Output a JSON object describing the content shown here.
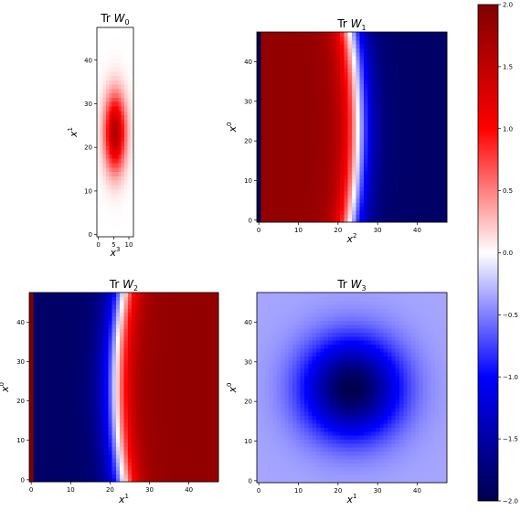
{
  "chart_data": [
    {
      "type": "heatmap",
      "title": "Tr W_0",
      "title_base": "Tr ",
      "title_var": "W",
      "title_sub": "0",
      "xlabel_var": "x",
      "xlabel_sup": "3",
      "ylabel_var": "x",
      "ylabel_sup": "1",
      "xlim": [
        0,
        12
      ],
      "ylim": [
        0,
        48
      ],
      "xticks": [
        0,
        5,
        10
      ],
      "yticks": [
        0,
        10,
        20,
        30,
        40
      ],
      "grid": false,
      "pattern": "gaussian bump, peak ~1.6 at (x3=6, x1=24)"
    },
    {
      "type": "heatmap",
      "title": "Tr W_1",
      "title_base": "Tr ",
      "title_var": "W",
      "title_sub": "1",
      "xlabel_var": "x",
      "xlabel_sup": "2",
      "ylabel_var": "x",
      "ylabel_sup": "0",
      "xlim": [
        0,
        48
      ],
      "ylim": [
        0,
        48
      ],
      "xticks": [
        0,
        10,
        20,
        30,
        40
      ],
      "yticks": [
        0,
        10,
        20,
        30,
        40
      ],
      "grid": false,
      "pattern": "positive (red) for x2 < 24, negative (blue) for x2 > 24"
    },
    {
      "type": "heatmap",
      "title": "Tr W_2",
      "title_base": "Tr ",
      "title_var": "W",
      "title_sub": "2",
      "xlabel_var": "x",
      "xlabel_sup": "1",
      "ylabel_var": "x",
      "ylabel_sup": "0",
      "xlim": [
        0,
        48
      ],
      "ylim": [
        0,
        48
      ],
      "xticks": [
        0,
        10,
        20,
        30,
        40
      ],
      "yticks": [
        0,
        10,
        20,
        30,
        40
      ],
      "grid": false,
      "pattern": "negative (blue) for x1 < 24, positive (red) for x1 > 24"
    },
    {
      "type": "heatmap",
      "title": "Tr W_3",
      "title_base": "Tr ",
      "title_var": "W",
      "title_sub": "3",
      "xlabel_var": "x",
      "xlabel_sup": "1",
      "ylabel_var": "x",
      "ylabel_sup": "0",
      "xlim": [
        0,
        48
      ],
      "ylim": [
        0,
        48
      ],
      "xticks": [
        0,
        10,
        20,
        30,
        40
      ],
      "yticks": [
        0,
        10,
        20,
        30,
        40
      ],
      "grid": false,
      "pattern": "negative bump, minimum ~-2.0 at (x1=24, x0=24)"
    }
  ],
  "colorbar": {
    "colormap": "seismic",
    "range": [
      -2.0,
      2.0
    ],
    "ticks": [
      2.0,
      1.5,
      1.0,
      0.5,
      0.0,
      -0.5,
      -1.0,
      -1.5,
      -2.0
    ],
    "tick_labels": [
      "2.0",
      "1.5",
      "1.0",
      "0.5",
      "0.0",
      "−0.5",
      "−1.0",
      "−1.5",
      "−2.0"
    ],
    "placement": "right"
  }
}
